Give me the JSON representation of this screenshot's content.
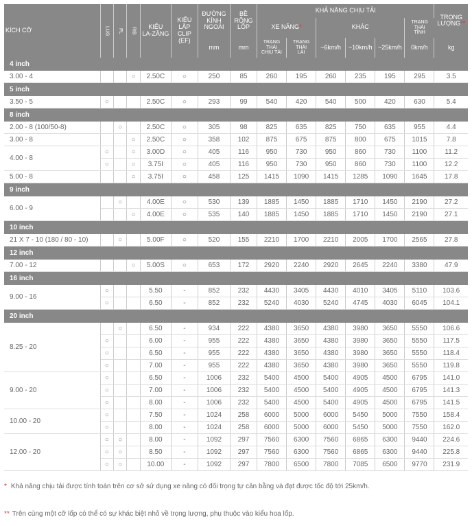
{
  "headers": {
    "size": "KÍCH CỠ",
    "lug": "LUG",
    "pl": "PL",
    "rib": "RIB",
    "lazang": "KIỂU\nLA-ZĂNG",
    "clip": "KIỂU\nLẮP\nCLIP\n(EF)",
    "duongkinh": "ĐƯỜNG\nKÍNH\nNGOÀI",
    "berong": "BỀ\nRỘNG\nLỐP",
    "khanang": "KHẢ NĂNG CHỊU TẢI",
    "xenang": "XE NÂNG",
    "khac": "KHÁC",
    "trangthaitinh": "TRẠNG THÁI\nTĨNH",
    "trongluong": "TRỌNG\nLƯỢNG",
    "mm": "mm",
    "trangthai_chiutai": "TRẠNG THÁI\nCHỊU TẢI",
    "trangthai_lai": "TRẠNG THÁI\nLÁI",
    "s6": "~6km/h",
    "s10": "~10km/h",
    "s25": "~25km/h",
    "s0": "0km/h",
    "kg": "kg"
  },
  "sections": [
    {
      "label": "4 inch",
      "rows": [
        {
          "size": "3.00 - 4",
          "lug": "",
          "pl": "",
          "rib": "○",
          "lazang": "2.50C",
          "clip": "○",
          "d": "250",
          "b": "85",
          "c1": "260",
          "c2": "195",
          "c3": "260",
          "c4": "235",
          "c5": "195",
          "c6": "295",
          "w": "3.5"
        }
      ]
    },
    {
      "label": "5 inch",
      "rows": [
        {
          "size": "3.50 - 5",
          "lug": "○",
          "pl": "",
          "rib": "",
          "lazang": "2.50C",
          "clip": "○",
          "d": "293",
          "b": "99",
          "c1": "540",
          "c2": "420",
          "c3": "540",
          "c4": "500",
          "c5": "420",
          "c6": "630",
          "w": "5.4"
        }
      ]
    },
    {
      "label": "8 inch",
      "rows": [
        {
          "size": "2.00 - 8   (100/50-8)",
          "lug": "",
          "pl": "○",
          "rib": "",
          "lazang": "2.50C",
          "clip": "○",
          "d": "305",
          "b": "98",
          "c1": "825",
          "c2": "635",
          "c3": "825",
          "c4": "750",
          "c5": "635",
          "c6": "955",
          "w": "4.4"
        },
        {
          "size": "3.00 - 8",
          "lug": "",
          "pl": "",
          "rib": "○",
          "lazang": "2.50C",
          "clip": "○",
          "d": "358",
          "b": "102",
          "c1": "875",
          "c2": "675",
          "c3": "875",
          "c4": "800",
          "c5": "675",
          "c6": "1015",
          "w": "7.8"
        },
        {
          "size": "4.00 - 8",
          "lug": "○",
          "pl": "",
          "rib": "○",
          "lazang": "3.00D",
          "clip": "○",
          "d": "405",
          "b": "116",
          "c1": "950",
          "c2": "730",
          "c3": "950",
          "c4": "860",
          "c5": "730",
          "c6": "1100",
          "w": "11.2",
          "span": 2
        },
        {
          "size": "",
          "lug": "○",
          "pl": "",
          "rib": "○",
          "lazang": "3.75I",
          "clip": "○",
          "d": "405",
          "b": "116",
          "c1": "950",
          "c2": "730",
          "c3": "950",
          "c4": "860",
          "c5": "730",
          "c6": "1100",
          "w": "12.2",
          "skip": true
        },
        {
          "size": "5.00 - 8",
          "lug": "",
          "pl": "",
          "rib": "○",
          "lazang": "3.75I",
          "clip": "○",
          "d": "458",
          "b": "125",
          "c1": "1415",
          "c2": "1090",
          "c3": "1415",
          "c4": "1285",
          "c5": "1090",
          "c6": "1645",
          "w": "17.8"
        }
      ]
    },
    {
      "label": "9 inch",
      "rows": [
        {
          "size": "6.00 - 9",
          "lug": "",
          "pl": "○",
          "rib": "",
          "lazang": "4.00E",
          "clip": "○",
          "d": "530",
          "b": "139",
          "c1": "1885",
          "c2": "1450",
          "c3": "1885",
          "c4": "1710",
          "c5": "1450",
          "c6": "2190",
          "w": "27.2",
          "span": 2
        },
        {
          "size": "",
          "lug": "",
          "pl": "",
          "rib": "○",
          "lazang": "4.00E",
          "clip": "○",
          "d": "535",
          "b": "140",
          "c1": "1885",
          "c2": "1450",
          "c3": "1885",
          "c4": "1710",
          "c5": "1450",
          "c6": "2190",
          "w": "27.1",
          "skip": true
        }
      ]
    },
    {
      "label": "10 inch",
      "rows": [
        {
          "size": "21 X 7 - 10 (180 / 80 - 10)",
          "lug": "",
          "pl": "○",
          "rib": "",
          "lazang": "5.00F",
          "clip": "○",
          "d": "520",
          "b": "155",
          "c1": "2210",
          "c2": "1700",
          "c3": "2210",
          "c4": "2005",
          "c5": "1700",
          "c6": "2565",
          "w": "27.8"
        }
      ]
    },
    {
      "label": "12 inch",
      "rows": [
        {
          "size": "7.00 - 12",
          "lug": "",
          "pl": "",
          "rib": "○",
          "lazang": "5.00S",
          "clip": "○",
          "d": "653",
          "b": "172",
          "c1": "2920",
          "c2": "2240",
          "c3": "2920",
          "c4": "2645",
          "c5": "2240",
          "c6": "3380",
          "w": "47.9"
        }
      ]
    },
    {
      "label": "16 inch",
      "rows": [
        {
          "size": "9.00 - 16",
          "lug": "○",
          "pl": "",
          "rib": "",
          "lazang": "5.50",
          "clip": "-",
          "d": "852",
          "b": "232",
          "c1": "4430",
          "c2": "3405",
          "c3": "4430",
          "c4": "4010",
          "c5": "3405",
          "c6": "5110",
          "w": "103.6",
          "span": 2
        },
        {
          "size": "",
          "lug": "○",
          "pl": "",
          "rib": "",
          "lazang": "6.50",
          "clip": "-",
          "d": "852",
          "b": "232",
          "c1": "5240",
          "c2": "4030",
          "c3": "5240",
          "c4": "4745",
          "c5": "4030",
          "c6": "6045",
          "w": "104.1",
          "skip": true
        }
      ]
    },
    {
      "label": "20 inch",
      "rows": [
        {
          "size": "8.25 - 20",
          "lug": "",
          "pl": "○",
          "rib": "",
          "lazang": "6.50",
          "clip": "-",
          "d": "934",
          "b": "222",
          "c1": "4380",
          "c2": "3650",
          "c3": "4380",
          "c4": "3980",
          "c5": "3650",
          "c6": "5550",
          "w": "106.6",
          "span": 4
        },
        {
          "size": "",
          "lug": "○",
          "pl": "",
          "rib": "",
          "lazang": "6.00",
          "clip": "-",
          "d": "955",
          "b": "222",
          "c1": "4380",
          "c2": "3650",
          "c3": "4380",
          "c4": "3980",
          "c5": "3650",
          "c6": "5550",
          "w": "117.5",
          "skip": true
        },
        {
          "size": "",
          "lug": "○",
          "pl": "",
          "rib": "",
          "lazang": "6.50",
          "clip": "-",
          "d": "955",
          "b": "222",
          "c1": "4380",
          "c2": "3650",
          "c3": "4380",
          "c4": "3980",
          "c5": "3650",
          "c6": "5550",
          "w": "118.4",
          "skip": true
        },
        {
          "size": "",
          "lug": "○",
          "pl": "",
          "rib": "",
          "lazang": "7.00",
          "clip": "-",
          "d": "955",
          "b": "222",
          "c1": "4380",
          "c2": "3650",
          "c3": "4380",
          "c4": "3980",
          "c5": "3650",
          "c6": "5550",
          "w": "119.8",
          "skip": true
        },
        {
          "size": "9.00 - 20",
          "lug": "○",
          "pl": "",
          "rib": "",
          "lazang": "6.50",
          "clip": "-",
          "d": "1006",
          "b": "232",
          "c1": "5400",
          "c2": "4500",
          "c3": "5400",
          "c4": "4905",
          "c5": "4500",
          "c6": "6795",
          "w": "141.0",
          "span": 3
        },
        {
          "size": "",
          "lug": "○",
          "pl": "",
          "rib": "",
          "lazang": "7.00",
          "clip": "-",
          "d": "1006",
          "b": "232",
          "c1": "5400",
          "c2": "4500",
          "c3": "5400",
          "c4": "4905",
          "c5": "4500",
          "c6": "6795",
          "w": "141.3",
          "skip": true
        },
        {
          "size": "",
          "lug": "○",
          "pl": "",
          "rib": "",
          "lazang": "8.00",
          "clip": "-",
          "d": "1006",
          "b": "232",
          "c1": "5400",
          "c2": "4500",
          "c3": "5400",
          "c4": "4905",
          "c5": "4500",
          "c6": "6795",
          "w": "141.5",
          "skip": true
        },
        {
          "size": "10.00 - 20",
          "lug": "○",
          "pl": "",
          "rib": "",
          "lazang": "7.50",
          "clip": "-",
          "d": "1024",
          "b": "258",
          "c1": "6000",
          "c2": "5000",
          "c3": "6000",
          "c4": "5450",
          "c5": "5000",
          "c6": "7550",
          "w": "158.4",
          "span": 2
        },
        {
          "size": "",
          "lug": "○",
          "pl": "",
          "rib": "",
          "lazang": "8.00",
          "clip": "-",
          "d": "1024",
          "b": "258",
          "c1": "6000",
          "c2": "5000",
          "c3": "6000",
          "c4": "5450",
          "c5": "5000",
          "c6": "7550",
          "w": "162.0",
          "skip": true
        },
        {
          "size": "12.00 - 20",
          "lug": "○",
          "pl": "○",
          "rib": "",
          "lazang": "8.00",
          "clip": "-",
          "d": "1092",
          "b": "297",
          "c1": "7560",
          "c2": "6300",
          "c3": "7560",
          "c4": "6865",
          "c5": "6300",
          "c6": "9440",
          "w": "224.6",
          "span": 3
        },
        {
          "size": "",
          "lug": "○",
          "pl": "○",
          "rib": "",
          "lazang": "8.50",
          "clip": "-",
          "d": "1092",
          "b": "297",
          "c1": "7560",
          "c2": "6300",
          "c3": "7560",
          "c4": "6865",
          "c5": "6300",
          "c6": "9440",
          "w": "225.8",
          "skip": true
        },
        {
          "size": "",
          "lug": "○",
          "pl": "○",
          "rib": "",
          "lazang": "10.00",
          "clip": "-",
          "d": "1092",
          "b": "297",
          "c1": "7800",
          "c2": "6500",
          "c3": "7800",
          "c4": "7085",
          "c5": "6500",
          "c6": "9770",
          "w": "231.9",
          "skip": true
        }
      ]
    }
  ],
  "notes": {
    "n1": "Khả năng chịu tải được tính toán trên cơ sở sử dụng xe nâng có đối trọng tự cân bằng và đạt được tốc độ tới 25km/h.",
    "n2": "Trên cùng một cỡ lốp có thể có sự khác biệt nhỏ về trọng lượng, phụ thuộc vào kiểu hoa lốp."
  }
}
